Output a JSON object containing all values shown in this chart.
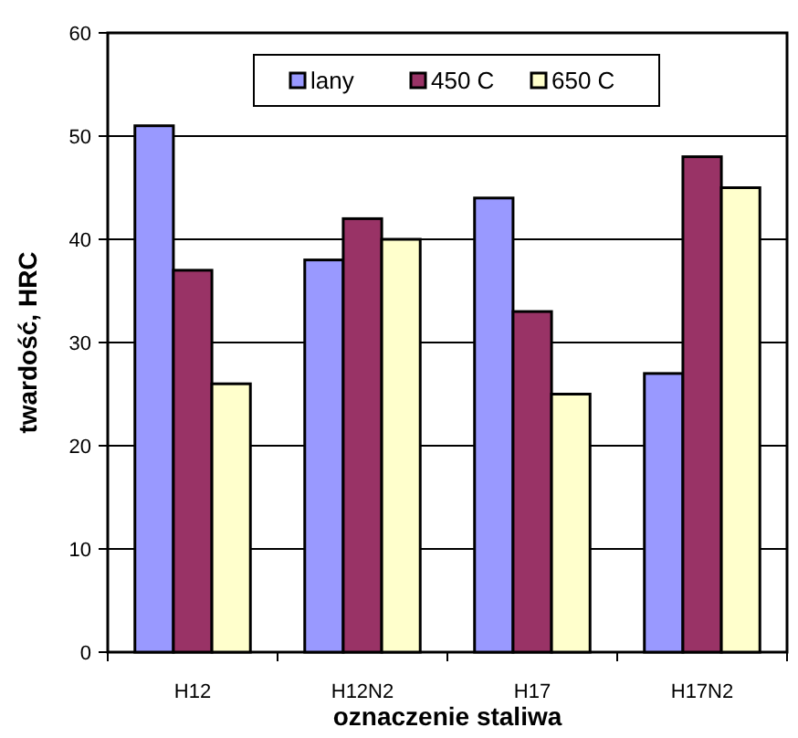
{
  "chart_data": {
    "type": "bar",
    "xlabel": "oznaczenie staliwa",
    "ylabel": "twardość, HRC",
    "categories": [
      "H12",
      "H12N2",
      "H17",
      "H17N2"
    ],
    "series": [
      {
        "name": "lany",
        "color": "#9999ff",
        "values": [
          51,
          38,
          44,
          27
        ]
      },
      {
        "name": "450 C",
        "color": "#993366",
        "values": [
          37,
          42,
          33,
          48
        ]
      },
      {
        "name": "650 C",
        "color": "#ffffcc",
        "values": [
          26,
          40,
          25,
          45
        ]
      }
    ],
    "ylim": [
      0,
      60
    ],
    "yticks": [
      0,
      10,
      20,
      30,
      40,
      50,
      60
    ],
    "grid": "y",
    "legend": "top"
  }
}
